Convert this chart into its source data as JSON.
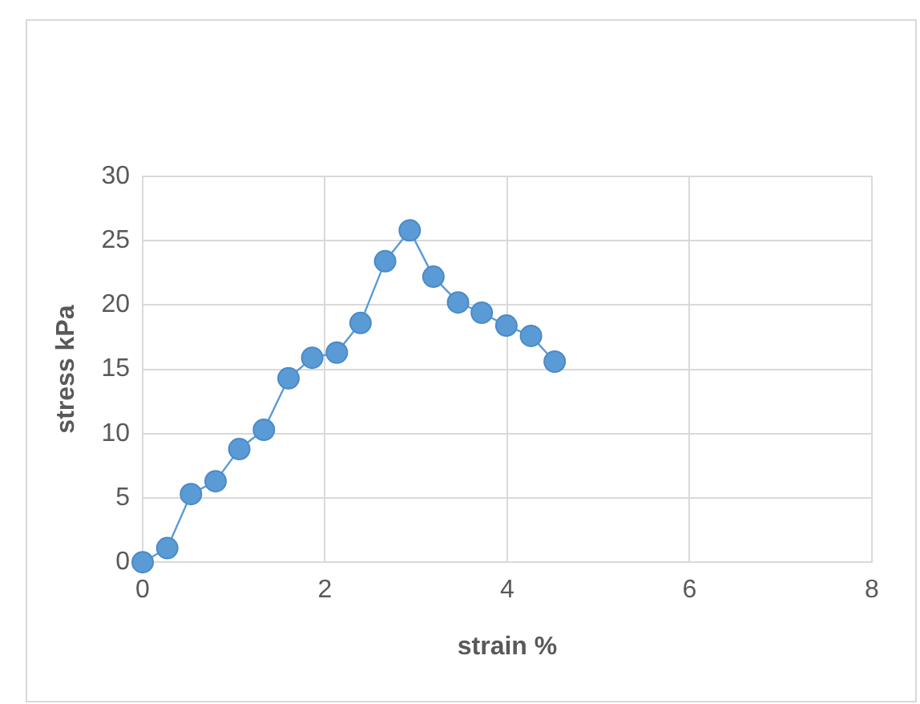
{
  "chart_data": {
    "type": "line",
    "xlabel": "strain %",
    "ylabel": "stress kPa",
    "x": [
      0,
      0.27,
      0.53,
      0.8,
      1.06,
      1.33,
      1.6,
      1.86,
      2.13,
      2.39,
      2.66,
      2.93,
      3.19,
      3.46,
      3.72,
      3.99,
      4.26,
      4.52
    ],
    "series": [
      {
        "color": "#5b9bd5",
        "values": [
          0,
          1.1,
          5.3,
          6.3,
          8.8,
          10.3,
          14.3,
          15.9,
          16.3,
          18.6,
          23.4,
          25.8,
          22.2,
          20.2,
          19.4,
          18.4,
          17.6,
          15.6
        ]
      }
    ],
    "xlim": [
      0,
      8
    ],
    "xticks": [
      0,
      2,
      4,
      6,
      8
    ],
    "ylim": [
      0,
      30
    ],
    "yticks": [
      0,
      5,
      10,
      15,
      20,
      25,
      30
    ],
    "grid": true,
    "legend": false,
    "marker": "circle",
    "line_style": "solid"
  }
}
